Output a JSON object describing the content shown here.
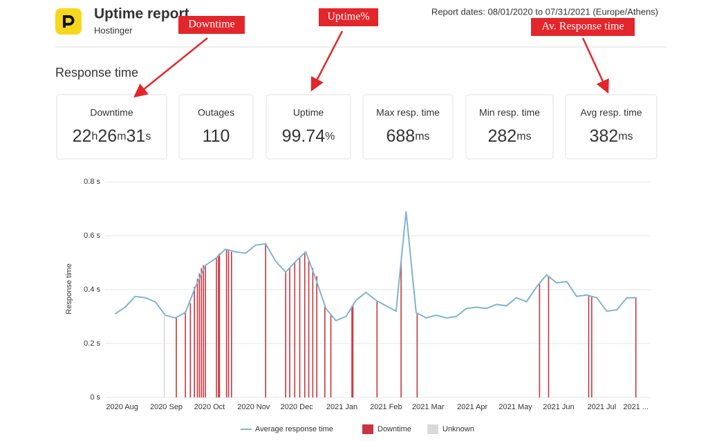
{
  "header": {
    "title": "Uptime report",
    "subtitle": "Hostinger",
    "report_dates": "Report dates: 08/01/2020 to 07/31/2021 (Europe/Athens)"
  },
  "section_title": "Response time",
  "annotations": [
    "Downtime",
    "Uptime%",
    "Av. Response time"
  ],
  "cards": [
    {
      "label": "Downtime",
      "value_parts": [
        "22",
        "h",
        "26",
        "m",
        "31",
        "s"
      ]
    },
    {
      "label": "Outages",
      "value_parts": [
        "110"
      ]
    },
    {
      "label": "Uptime",
      "value_parts": [
        "99.74",
        "%"
      ]
    },
    {
      "label": "Max resp. time",
      "value_parts": [
        "688",
        "ms"
      ]
    },
    {
      "label": "Min resp. time",
      "value_parts": [
        "282",
        "ms"
      ]
    },
    {
      "label": "Avg resp. time",
      "value_parts": [
        "382",
        "ms"
      ]
    }
  ],
  "chart_data": {
    "type": "line",
    "y_label": "Response time",
    "xlim": [
      -1,
      53.3
    ],
    "ylim": [
      0,
      0.8
    ],
    "yticks": [
      {
        "value": 0,
        "label": "0 s"
      },
      {
        "value": 0.2,
        "label": "0.2 s"
      },
      {
        "value": 0.4,
        "label": "0.4 s"
      },
      {
        "value": 0.6,
        "label": "0.6 s"
      },
      {
        "value": 0.8,
        "label": "0.8 s"
      }
    ],
    "xticks": [
      {
        "value": 0.7,
        "label": "2020 Aug"
      },
      {
        "value": 5.1,
        "label": "2020 Sep"
      },
      {
        "value": 9.4,
        "label": "2020 Oct"
      },
      {
        "value": 13.8,
        "label": "2020 Nov"
      },
      {
        "value": 18.1,
        "label": "2020 Dec"
      },
      {
        "value": 22.6,
        "label": "2021 Jan"
      },
      {
        "value": 27.0,
        "label": "2021 Feb"
      },
      {
        "value": 31.2,
        "label": "2021 Mar"
      },
      {
        "value": 35.6,
        "label": "2021 Apr"
      },
      {
        "value": 39.9,
        "label": "2021 May"
      },
      {
        "value": 44.2,
        "label": "2021 Jun"
      },
      {
        "value": 48.5,
        "label": "2021 Jul"
      },
      {
        "value": 51.9,
        "label": "2021 ..."
      }
    ],
    "grid": true,
    "series": [
      {
        "name": "Average response time",
        "color": "#7db5cf",
        "x": [
          0,
          1,
          2,
          3,
          4,
          5,
          6,
          7,
          8,
          9,
          10,
          11,
          12,
          13,
          14,
          15,
          16,
          17,
          18,
          19,
          20,
          21,
          22,
          23,
          24,
          25,
          26,
          27,
          28,
          29,
          30,
          31,
          32,
          33,
          34,
          35,
          36,
          37,
          38,
          39,
          40,
          41,
          42,
          43,
          44,
          45,
          46,
          47,
          48,
          49,
          50,
          51,
          52
        ],
        "values": [
          0.31,
          0.335,
          0.375,
          0.37,
          0.355,
          0.305,
          0.295,
          0.315,
          0.41,
          0.49,
          0.515,
          0.55,
          0.54,
          0.535,
          0.565,
          0.57,
          0.505,
          0.465,
          0.505,
          0.54,
          0.44,
          0.33,
          0.285,
          0.3,
          0.36,
          0.39,
          0.36,
          0.34,
          0.32,
          0.69,
          0.315,
          0.295,
          0.305,
          0.295,
          0.3,
          0.33,
          0.335,
          0.33,
          0.345,
          0.34,
          0.37,
          0.355,
          0.41,
          0.455,
          0.425,
          0.43,
          0.375,
          0.38,
          0.37,
          0.32,
          0.325,
          0.37,
          0.37
        ]
      },
      {
        "name": "Downtime",
        "color": "#c9353e",
        "x": [
          6.1,
          7.0,
          7.5,
          7.9,
          8.2,
          8.4,
          8.6,
          8.8,
          9.0,
          10.1,
          10.3,
          10.4,
          11.1,
          11.3,
          11.6,
          15.0,
          17.0,
          17.4,
          17.9,
          18.4,
          18.9,
          19.3,
          19.7,
          20.1,
          20.9,
          21.5,
          23.6,
          23.7,
          26.1,
          28.5,
          30.1,
          42.3,
          43.2,
          47.2,
          47.5,
          51.9
        ],
        "values": [
          0.3,
          0.32,
          0.35,
          0.41,
          0.44,
          0.46,
          0.48,
          0.49,
          0.49,
          0.52,
          0.53,
          0.535,
          0.55,
          0.545,
          0.54,
          0.57,
          0.465,
          0.48,
          0.5,
          0.52,
          0.54,
          0.51,
          0.48,
          0.45,
          0.34,
          0.31,
          0.34,
          0.345,
          0.355,
          0.5,
          0.31,
          0.42,
          0.45,
          0.38,
          0.375,
          0.37
        ]
      },
      {
        "name": "Unknown",
        "color": "#d9d9d9",
        "x": [
          4.9
        ],
        "values": [
          0.305
        ]
      }
    ]
  }
}
